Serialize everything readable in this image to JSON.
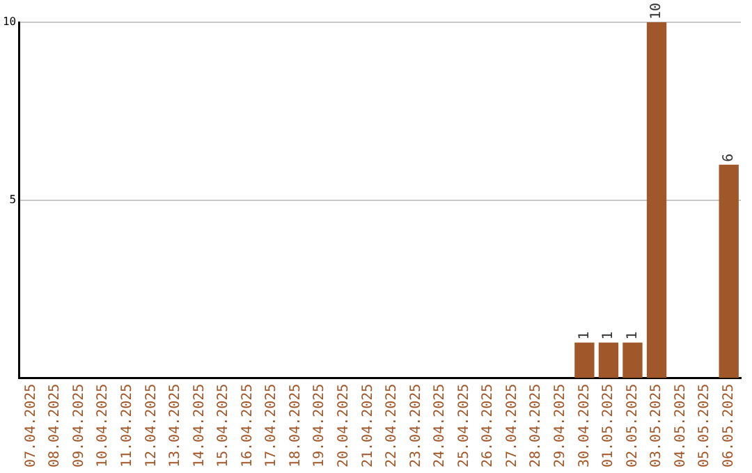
{
  "chart_data": {
    "type": "bar",
    "categories": [
      "07.04.2025",
      "08.04.2025",
      "09.04.2025",
      "10.04.2025",
      "11.04.2025",
      "12.04.2025",
      "13.04.2025",
      "14.04.2025",
      "15.04.2025",
      "16.04.2025",
      "17.04.2025",
      "18.04.2025",
      "19.04.2025",
      "20.04.2025",
      "21.04.2025",
      "22.04.2025",
      "23.04.2025",
      "24.04.2025",
      "25.04.2025",
      "26.04.2025",
      "27.04.2025",
      "28.04.2025",
      "29.04.2025",
      "30.04.2025",
      "01.05.2025",
      "02.05.2025",
      "03.05.2025",
      "04.05.2025",
      "05.05.2025",
      "06.05.2025"
    ],
    "values": [
      0,
      0,
      0,
      0,
      0,
      0,
      0,
      0,
      0,
      0,
      0,
      0,
      0,
      0,
      0,
      0,
      0,
      0,
      0,
      0,
      0,
      0,
      0,
      1,
      1,
      1,
      10,
      0,
      0,
      6
    ],
    "value_labels": [
      null,
      null,
      null,
      null,
      null,
      null,
      null,
      null,
      null,
      null,
      null,
      null,
      null,
      null,
      null,
      null,
      null,
      null,
      null,
      null,
      null,
      null,
      null,
      "1",
      "1",
      "1",
      "10",
      null,
      null,
      "6"
    ],
    "color": "#a0582a",
    "ylim": [
      0,
      10
    ],
    "yticks": [
      5,
      10
    ],
    "grid": "y",
    "legend": false
  }
}
